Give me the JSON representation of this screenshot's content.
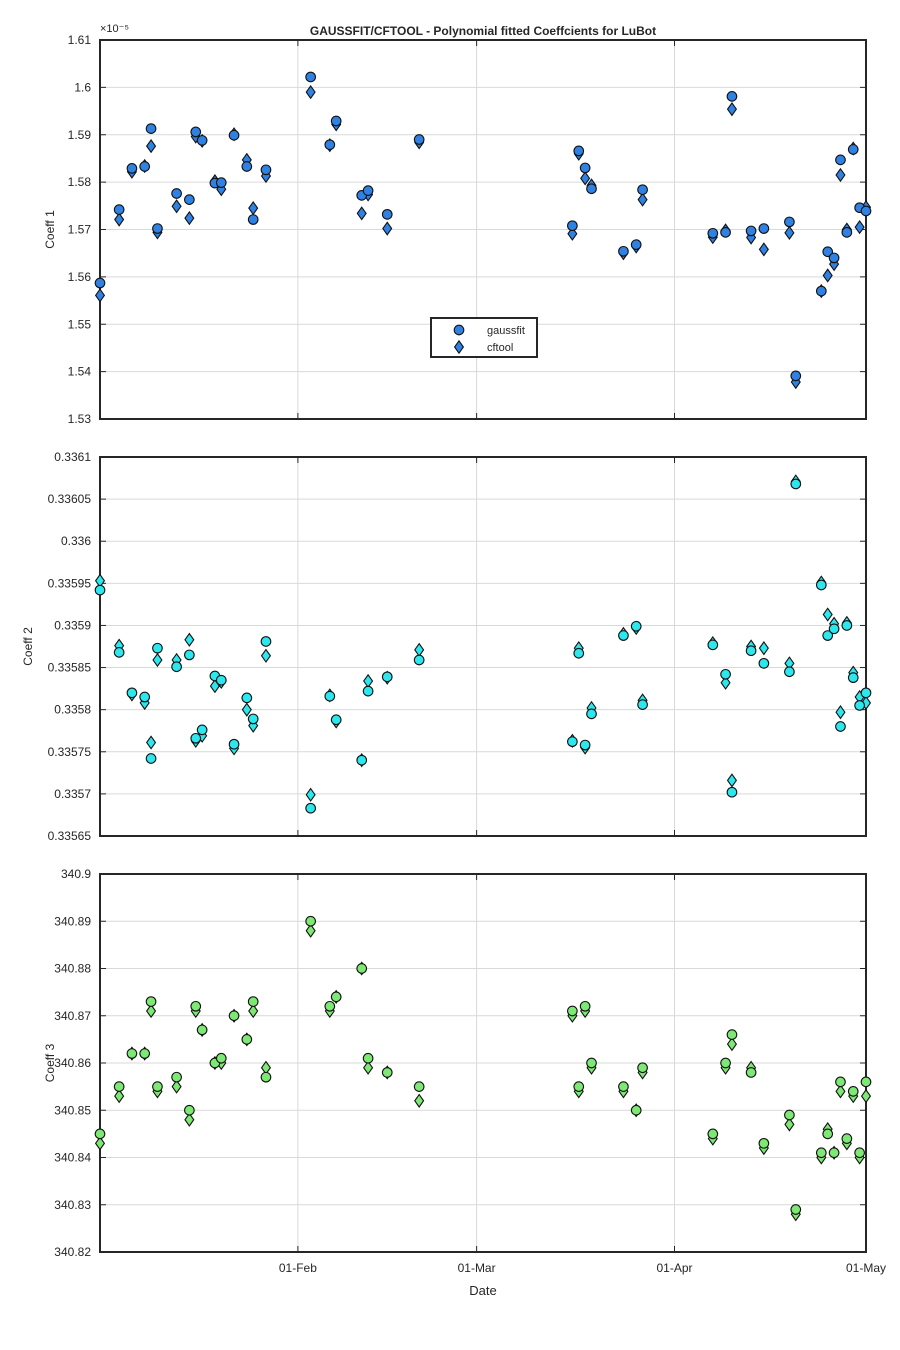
{
  "figure": {
    "title": "GAUSSFIT/CFTOOL - Polynomial fitted Coeffcients for LuBot",
    "xlabel": "Date"
  },
  "x_axis": {
    "type": "date",
    "range": [
      "2017-01-01",
      "2017-05-01"
    ],
    "ticks": [
      {
        "date": "2017-02-01",
        "label": "01-Feb"
      },
      {
        "date": "2017-03-01",
        "label": "01-Mar"
      },
      {
        "date": "2017-04-01",
        "label": "01-Apr"
      },
      {
        "date": "2017-05-01",
        "label": "01-May"
      }
    ]
  },
  "legend": {
    "placement": "inside-center",
    "entries": [
      {
        "label": "gaussfit",
        "marker": "circle"
      },
      {
        "label": "cftool",
        "marker": "diamond"
      }
    ]
  },
  "colors": {
    "coeff1": "#2f82e3",
    "coeff2": "#2ce8ee",
    "coeff3": "#7de873",
    "grid": "#d9d9d9",
    "axes": "#262626"
  },
  "chart_data": [
    {
      "type": "scatter",
      "ylabel": "Coeff 1",
      "exponent_label": "×10⁻⁵",
      "ylim": [
        1.53,
        1.61
      ],
      "yticks": [
        1.53,
        1.54,
        1.55,
        1.56,
        1.57,
        1.58,
        1.59,
        1.6,
        1.61
      ],
      "ytick_labels": [
        "1.53",
        "1.54",
        "1.55",
        "1.56",
        "1.57",
        "1.58",
        "1.59",
        "1.6",
        "1.61"
      ],
      "grid": true,
      "x": [
        "2017-01-01",
        "2017-01-04",
        "2017-01-06",
        "2017-01-08",
        "2017-01-09",
        "2017-01-10",
        "2017-01-13",
        "2017-01-15",
        "2017-01-16",
        "2017-01-17",
        "2017-01-19",
        "2017-01-20",
        "2017-01-22",
        "2017-01-24",
        "2017-01-25",
        "2017-01-27",
        "2017-02-03",
        "2017-02-06",
        "2017-02-07",
        "2017-02-11",
        "2017-02-12",
        "2017-02-15",
        "2017-02-20",
        "2017-03-16",
        "2017-03-17",
        "2017-03-18",
        "2017-03-19",
        "2017-03-24",
        "2017-03-26",
        "2017-03-27",
        "2017-04-07",
        "2017-04-09",
        "2017-04-10",
        "2017-04-13",
        "2017-04-15",
        "2017-04-19",
        "2017-04-20",
        "2017-04-24",
        "2017-04-25",
        "2017-04-26",
        "2017-04-27",
        "2017-04-28",
        "2017-04-29",
        "2017-04-30",
        "2017-05-01"
      ],
      "series": [
        {
          "name": "gaussfit",
          "marker": "circle",
          "values": [
            1.5587,
            1.5742,
            1.5829,
            1.5833,
            1.5913,
            1.5702,
            1.5776,
            1.5763,
            1.5906,
            1.5888,
            1.5798,
            1.5799,
            1.5899,
            1.5833,
            1.5721,
            1.5826,
            1.6022,
            1.5879,
            1.5929,
            1.5772,
            1.5782,
            1.5732,
            1.589,
            1.5708,
            1.5866,
            1.583,
            1.5786,
            1.5654,
            1.5668,
            1.5784,
            1.5692,
            1.5694,
            1.5981,
            1.5697,
            1.5702,
            1.5716,
            1.5391,
            1.557,
            1.5653,
            1.564,
            1.5847,
            1.5694,
            1.5869,
            1.5746,
            1.5739
          ]
        },
        {
          "name": "cftool",
          "marker": "diamond",
          "values": [
            1.5561,
            1.5721,
            1.5822,
            1.5834,
            1.5876,
            1.5694,
            1.5749,
            1.5724,
            1.5896,
            1.5887,
            1.5802,
            1.5785,
            1.5901,
            1.5847,
            1.5745,
            1.5813,
            1.599,
            1.5878,
            1.5922,
            1.5734,
            1.5774,
            1.5702,
            1.5884,
            1.5691,
            1.586,
            1.5808,
            1.5793,
            1.565,
            1.5664,
            1.5763,
            1.5684,
            1.5698,
            1.5954,
            1.5683,
            1.5658,
            1.5693,
            1.5378,
            1.557,
            1.5603,
            1.5627,
            1.5815,
            1.57,
            1.5871,
            1.5705,
            1.5747
          ]
        }
      ]
    },
    {
      "type": "scatter",
      "ylabel": "Coeff 2",
      "ylim": [
        0.33565,
        0.3361
      ],
      "yticks": [
        0.33565,
        0.3357,
        0.33575,
        0.3358,
        0.33585,
        0.3359,
        0.33595,
        0.336,
        0.33605,
        0.3361
      ],
      "ytick_labels": [
        "0.33565",
        "0.3357",
        "0.33575",
        "0.3358",
        "0.33585",
        "0.3359",
        "0.33595",
        "0.336",
        "0.33605",
        "0.3361"
      ],
      "grid": true,
      "x": [
        "2017-01-01",
        "2017-01-04",
        "2017-01-06",
        "2017-01-08",
        "2017-01-09",
        "2017-01-10",
        "2017-01-13",
        "2017-01-15",
        "2017-01-16",
        "2017-01-17",
        "2017-01-19",
        "2017-01-20",
        "2017-01-22",
        "2017-01-24",
        "2017-01-25",
        "2017-01-27",
        "2017-02-03",
        "2017-02-06",
        "2017-02-07",
        "2017-02-11",
        "2017-02-12",
        "2017-02-15",
        "2017-02-20",
        "2017-03-16",
        "2017-03-17",
        "2017-03-18",
        "2017-03-19",
        "2017-03-24",
        "2017-03-26",
        "2017-03-27",
        "2017-04-07",
        "2017-04-09",
        "2017-04-10",
        "2017-04-13",
        "2017-04-15",
        "2017-04-19",
        "2017-04-20",
        "2017-04-24",
        "2017-04-25",
        "2017-04-26",
        "2017-04-27",
        "2017-04-28",
        "2017-04-29",
        "2017-04-30",
        "2017-05-01"
      ],
      "series": [
        {
          "name": "gaussfit",
          "marker": "circle",
          "values": [
            0.335942,
            0.335868,
            0.33582,
            0.335815,
            0.335742,
            0.335873,
            0.335851,
            0.335865,
            0.335766,
            0.335776,
            0.33584,
            0.335835,
            0.335759,
            0.335814,
            0.335789,
            0.335881,
            0.335683,
            0.335816,
            0.335788,
            0.33574,
            0.335822,
            0.335839,
            0.335859,
            0.335762,
            0.335867,
            0.335758,
            0.335795,
            0.335888,
            0.335899,
            0.335806,
            0.335877,
            0.335842,
            0.335702,
            0.33587,
            0.335855,
            0.335845,
            0.336068,
            0.335948,
            0.335888,
            0.335896,
            0.33578,
            0.3359,
            0.335838,
            0.335805,
            0.33582
          ]
        },
        {
          "name": "cftool",
          "marker": "diamond",
          "values": [
            0.335953,
            0.335876,
            0.335818,
            0.335808,
            0.335761,
            0.335859,
            0.335859,
            0.335883,
            0.335763,
            0.335769,
            0.335828,
            0.335833,
            0.335754,
            0.3358,
            0.335781,
            0.335864,
            0.335699,
            0.335817,
            0.335786,
            0.33574,
            0.335834,
            0.335838,
            0.335871,
            0.335763,
            0.335873,
            0.335755,
            0.335802,
            0.33589,
            0.335897,
            0.335811,
            0.335879,
            0.335832,
            0.335716,
            0.335875,
            0.335873,
            0.335855,
            0.336071,
            0.335951,
            0.335913,
            0.335902,
            0.335797,
            0.335903,
            0.335844,
            0.335815,
            0.335808
          ]
        }
      ]
    },
    {
      "type": "scatter",
      "ylabel": "Coeff 3",
      "ylim": [
        340.82,
        340.9
      ],
      "yticks": [
        340.82,
        340.83,
        340.84,
        340.85,
        340.86,
        340.87,
        340.88,
        340.89,
        340.9
      ],
      "ytick_labels": [
        "340.82",
        "340.83",
        "340.84",
        "340.85",
        "340.86",
        "340.87",
        "340.88",
        "340.89",
        "340.9"
      ],
      "grid": true,
      "x": [
        "2017-01-01",
        "2017-01-04",
        "2017-01-06",
        "2017-01-08",
        "2017-01-09",
        "2017-01-10",
        "2017-01-13",
        "2017-01-15",
        "2017-01-16",
        "2017-01-17",
        "2017-01-19",
        "2017-01-20",
        "2017-01-22",
        "2017-01-24",
        "2017-01-25",
        "2017-01-27",
        "2017-02-03",
        "2017-02-06",
        "2017-02-07",
        "2017-02-11",
        "2017-02-12",
        "2017-02-15",
        "2017-02-20",
        "2017-03-16",
        "2017-03-17",
        "2017-03-18",
        "2017-03-19",
        "2017-03-24",
        "2017-03-26",
        "2017-03-27",
        "2017-04-07",
        "2017-04-09",
        "2017-04-10",
        "2017-04-13",
        "2017-04-15",
        "2017-04-19",
        "2017-04-20",
        "2017-04-24",
        "2017-04-25",
        "2017-04-26",
        "2017-04-27",
        "2017-04-28",
        "2017-04-29",
        "2017-04-30",
        "2017-05-01"
      ],
      "series": [
        {
          "name": "gaussfit",
          "marker": "circle",
          "values": [
            340.845,
            340.855,
            340.862,
            340.862,
            340.873,
            340.855,
            340.857,
            340.85,
            340.872,
            340.867,
            340.86,
            340.861,
            340.87,
            340.865,
            340.873,
            340.857,
            340.89,
            340.872,
            340.874,
            340.88,
            340.861,
            340.858,
            340.855,
            340.871,
            340.855,
            340.872,
            340.86,
            340.855,
            340.85,
            340.859,
            340.845,
            340.86,
            340.866,
            340.858,
            340.843,
            340.849,
            340.829,
            340.841,
            340.845,
            340.841,
            340.856,
            340.844,
            340.854,
            340.841,
            340.856
          ]
        },
        {
          "name": "cftool",
          "marker": "diamond",
          "values": [
            340.843,
            340.853,
            340.862,
            340.862,
            340.871,
            340.854,
            340.855,
            340.848,
            340.871,
            340.867,
            340.86,
            340.86,
            340.87,
            340.865,
            340.871,
            340.859,
            340.888,
            340.871,
            340.874,
            340.88,
            340.859,
            340.858,
            340.852,
            340.87,
            340.854,
            340.871,
            340.859,
            340.854,
            340.85,
            340.858,
            340.844,
            340.859,
            340.864,
            340.859,
            340.842,
            340.847,
            340.828,
            340.84,
            340.846,
            340.841,
            340.854,
            340.843,
            340.853,
            340.84,
            340.853
          ]
        }
      ]
    }
  ]
}
